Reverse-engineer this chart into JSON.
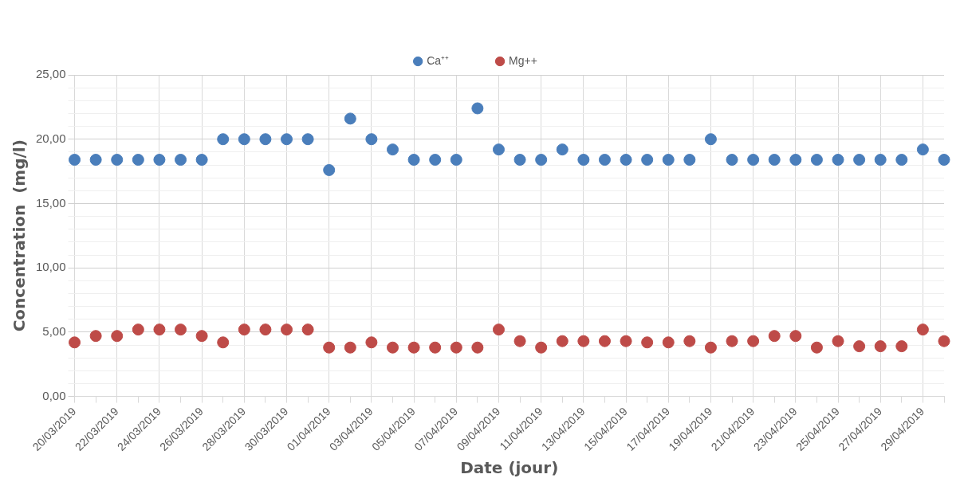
{
  "chart_data": {
    "type": "scatter",
    "xlabel": "Date (jour)",
    "ylabel": "Concentration  (mg/l)",
    "categories": [
      "20/03/2019",
      null,
      "22/03/2019",
      null,
      "24/03/2019",
      null,
      "26/03/2019",
      null,
      "28/03/2019",
      null,
      "30/03/2019",
      null,
      "01/04/2019",
      null,
      "03/04/2019",
      null,
      "05/04/2019",
      null,
      "07/04/2019",
      null,
      "09/04/2019",
      null,
      "11/04/2019",
      null,
      "13/04/2019",
      null,
      "15/04/2019",
      null,
      "17/04/2019",
      null,
      "19/04/2019",
      null,
      "21/04/2019",
      null,
      "23/04/2019",
      null,
      "25/04/2019",
      null,
      "27/04/2019",
      null,
      "29/04/2019",
      null
    ],
    "series": [
      {
        "name": "Ca⁺⁺",
        "color": "#4a7ebb",
        "values": [
          18.4,
          18.4,
          18.4,
          18.4,
          18.4,
          18.4,
          18.4,
          20,
          20,
          20,
          20,
          20,
          17.6,
          21.6,
          20,
          19.2,
          18.4,
          18.4,
          18.4,
          22.4,
          19.2,
          18.4,
          18.4,
          19.2,
          18.4,
          18.4,
          18.4,
          18.4,
          18.4,
          18.4,
          20,
          18.4,
          18.4,
          18.4,
          18.4,
          18.4,
          18.4,
          18.4,
          18.4,
          18.4,
          19.2,
          18.4
        ]
      },
      {
        "name": "Mg++",
        "color": "#be4b48",
        "values": [
          4.2,
          4.7,
          4.7,
          5.2,
          5.2,
          5.2,
          4.7,
          4.2,
          5.2,
          5.2,
          5.2,
          5.2,
          3.8,
          3.8,
          4.2,
          3.8,
          3.8,
          3.8,
          3.8,
          3.8,
          5.2,
          4.3,
          3.8,
          4.3,
          4.3,
          4.3,
          4.3,
          4.2,
          4.2,
          4.3,
          3.8,
          4.3,
          4.3,
          4.7,
          4.7,
          3.8,
          4.3,
          3.9,
          3.9,
          3.9,
          5.2,
          4.3
        ]
      }
    ],
    "ylim": [
      0,
      25
    ],
    "yticks": [
      {
        "value": 0,
        "label": "0,00"
      },
      {
        "value": 1,
        "label": null
      },
      {
        "value": 2,
        "label": null
      },
      {
        "value": 3,
        "label": null
      },
      {
        "value": 4,
        "label": null
      },
      {
        "value": 5,
        "label": "5,00"
      },
      {
        "value": 6,
        "label": null
      },
      {
        "value": 7,
        "label": null
      },
      {
        "value": 8,
        "label": null
      },
      {
        "value": 9,
        "label": null
      },
      {
        "value": 10,
        "label": "10,00"
      },
      {
        "value": 11,
        "label": null
      },
      {
        "value": 12,
        "label": null
      },
      {
        "value": 13,
        "label": null
      },
      {
        "value": 14,
        "label": null
      },
      {
        "value": 15,
        "label": "15,00"
      },
      {
        "value": 16,
        "label": null
      },
      {
        "value": 17,
        "label": null
      },
      {
        "value": 18,
        "label": null
      },
      {
        "value": 19,
        "label": null
      },
      {
        "value": 20,
        "label": "20,00"
      },
      {
        "value": 21,
        "label": null
      },
      {
        "value": 22,
        "label": null
      },
      {
        "value": 23,
        "label": null
      },
      {
        "value": 24,
        "label": null
      },
      {
        "value": 25,
        "label": "25,00"
      }
    ],
    "grid": true,
    "legend": "top",
    "marker": "circle"
  }
}
